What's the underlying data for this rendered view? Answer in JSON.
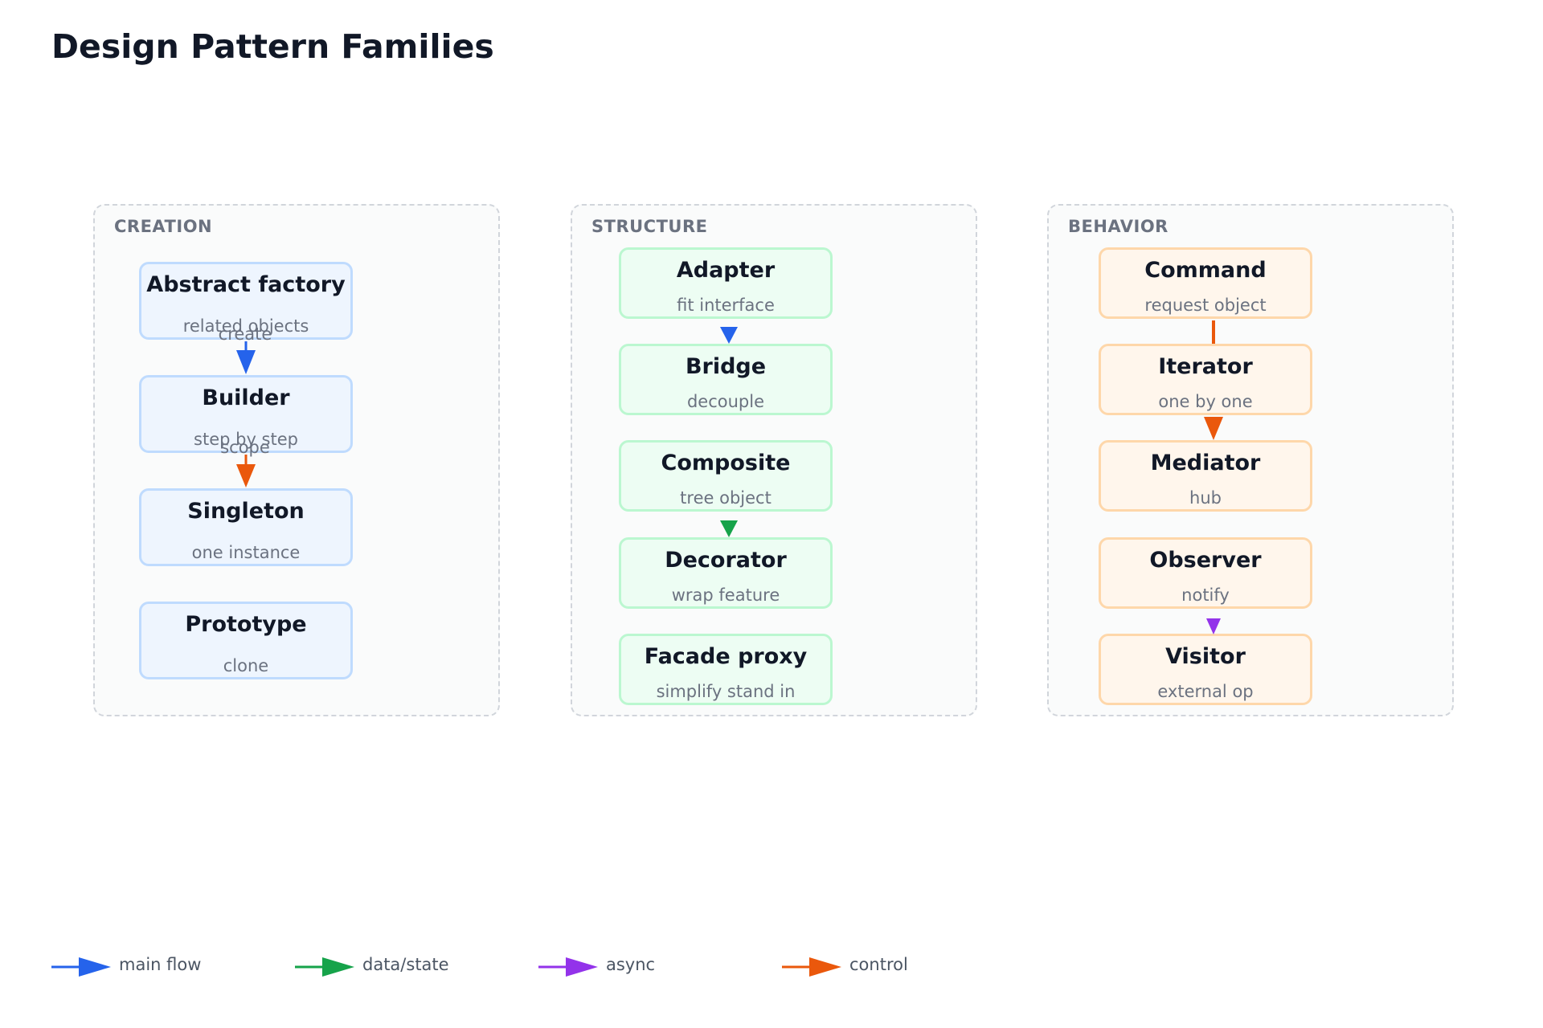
{
  "title": "Design Pattern Families",
  "colors": {
    "main_flow": "#2563eb",
    "data_state": "#16a34a",
    "async": "#9333ea",
    "control": "#ea580c"
  },
  "groups": [
    {
      "label": "CREATION",
      "nodes": [
        {
          "title": "Abstract factory",
          "subtitle": "related objects"
        },
        {
          "title": "Builder",
          "subtitle": "step by step"
        },
        {
          "title": "Singleton",
          "subtitle": "one instance"
        },
        {
          "title": "Prototype",
          "subtitle": "clone"
        }
      ],
      "edge_labels": [
        "create",
        "scope"
      ]
    },
    {
      "label": "STRUCTURE",
      "nodes": [
        {
          "title": "Adapter",
          "subtitle": "fit interface"
        },
        {
          "title": "Bridge",
          "subtitle": "decouple"
        },
        {
          "title": "Composite",
          "subtitle": "tree object"
        },
        {
          "title": "Decorator",
          "subtitle": "wrap feature"
        },
        {
          "title": "Facade proxy",
          "subtitle": "simplify stand in"
        }
      ]
    },
    {
      "label": "BEHAVIOR",
      "nodes": [
        {
          "title": "Command",
          "subtitle": "request object"
        },
        {
          "title": "Iterator",
          "subtitle": "one by one"
        },
        {
          "title": "Mediator",
          "subtitle": "hub"
        },
        {
          "title": "Observer",
          "subtitle": "notify"
        },
        {
          "title": "Visitor",
          "subtitle": "external op"
        }
      ]
    }
  ],
  "edges": [
    {
      "from": "Abstract factory",
      "to": "Builder",
      "kind": "main flow",
      "label": "create"
    },
    {
      "from": "Builder",
      "to": "Singleton",
      "kind": "control",
      "label": "scope"
    },
    {
      "from": "Adapter",
      "to": "Bridge",
      "kind": "main flow"
    },
    {
      "from": "Composite",
      "to": "Decorator",
      "kind": "data/state"
    },
    {
      "from": "Command",
      "to": "Iterator",
      "kind": "control"
    },
    {
      "from": "Iterator",
      "to": "Mediator",
      "kind": "control"
    },
    {
      "from": "Observer",
      "to": "Visitor",
      "kind": "async"
    }
  ],
  "legend": [
    {
      "label": "main flow",
      "color": "#2563eb"
    },
    {
      "label": "data/state",
      "color": "#16a34a"
    },
    {
      "label": "async",
      "color": "#9333ea"
    },
    {
      "label": "control",
      "color": "#ea580c"
    }
  ]
}
